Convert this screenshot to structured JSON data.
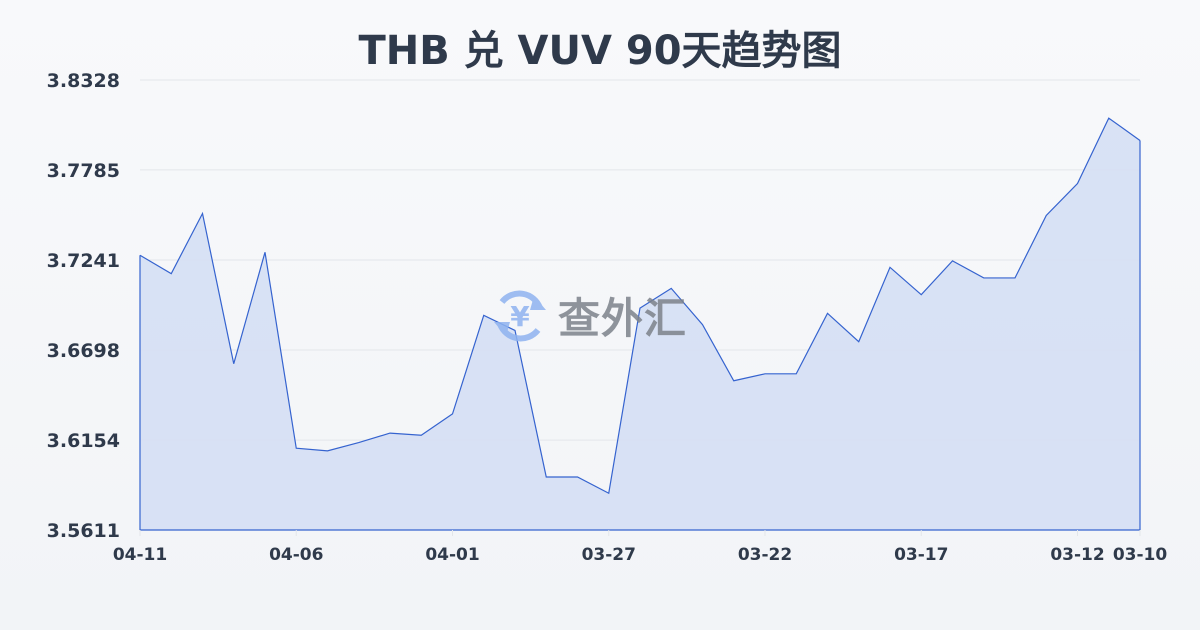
{
  "title": "THB 兑 VUV 90天趋势图",
  "watermark": {
    "text": "查外汇",
    "icon": "yen-exchange-icon"
  },
  "colors": {
    "line": "#3563cf",
    "fill": "#d5dff4",
    "grid": "#e3e6ea",
    "text": "#2f3a4b"
  },
  "chart_data": {
    "type": "area",
    "title": "THB 兑 VUV 90天趋势图",
    "xlabel": "",
    "ylabel": "",
    "ylim": [
      3.5611,
      3.8328
    ],
    "yticks": [
      "3.8328",
      "3.7785",
      "3.7241",
      "3.6698",
      "3.6154",
      "3.5611"
    ],
    "xticks": [
      "04-11",
      "04-06",
      "04-01",
      "03-27",
      "03-22",
      "03-17",
      "03-12",
      "03-10"
    ],
    "grid": true,
    "x": [
      "04-11",
      "04-10",
      "04-09",
      "04-08",
      "04-07",
      "04-06",
      "04-05",
      "04-04",
      "04-03",
      "04-02",
      "04-01",
      "03-31",
      "03-30",
      "03-29",
      "03-28",
      "03-27",
      "03-26",
      "03-25",
      "03-24",
      "03-23",
      "03-22",
      "03-21",
      "03-20",
      "03-19",
      "03-18",
      "03-17",
      "03-16",
      "03-15",
      "03-14",
      "03-13",
      "03-12",
      "03-11",
      "03-10"
    ],
    "values": [
      3.727,
      3.7159,
      3.7522,
      3.6615,
      3.7288,
      3.6105,
      3.6089,
      3.6139,
      3.6196,
      3.6183,
      3.6312,
      3.6907,
      3.6816,
      3.5931,
      3.5931,
      3.5833,
      3.6951,
      3.707,
      3.6851,
      3.6512,
      3.6554,
      3.6554,
      3.6919,
      3.6748,
      3.7197,
      3.7032,
      3.7236,
      3.7133,
      3.7133,
      3.751,
      3.7703,
      3.8098,
      3.7963
    ]
  }
}
